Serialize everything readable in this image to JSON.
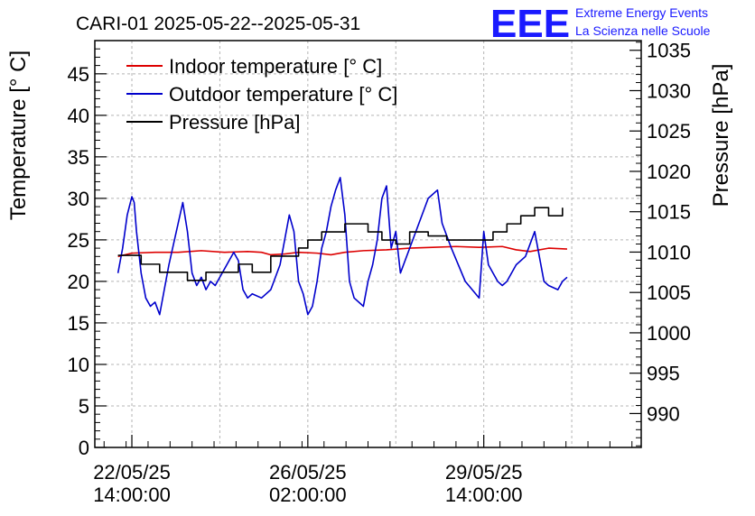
{
  "chart_data": {
    "type": "line",
    "title": "CARI-01 2025-05-22--2025-05-31",
    "logo": {
      "mark": "EEE",
      "line1": "Extreme Energy Events",
      "line2": "La Scienza nelle Scuole",
      "color": "#1a1aff"
    },
    "ylabel": "Temperature [° C]",
    "y2label": "Pressure [hPa]",
    "ylim": [
      0,
      49
    ],
    "y2lim": [
      985.8,
      1036.2
    ],
    "yticks": [
      0,
      5,
      10,
      15,
      20,
      25,
      30,
      35,
      40,
      45
    ],
    "y2ticks": [
      990,
      995,
      1000,
      1005,
      1010,
      1015,
      1020,
      1025,
      1030,
      1035
    ],
    "xlim": [
      -0.8,
      11.0
    ],
    "xticks": [
      {
        "x": 0,
        "line1": "22/05/25",
        "line2": "14:00:00"
      },
      {
        "x": 3.8,
        "line1": "26/05/25",
        "line2": "02:00:00"
      },
      {
        "x": 7.6,
        "line1": "29/05/25",
        "line2": "14:00:00"
      }
    ],
    "grid": true,
    "legend_position": "top-left",
    "series": [
      {
        "name": "Indoor temperature [° C]",
        "axis": "left",
        "color": "#dd0000",
        "x": [
          -0.3,
          0.0,
          0.5,
          1.0,
          1.5,
          2.0,
          2.5,
          2.8,
          3.0,
          3.3,
          3.6,
          4.0,
          4.3,
          4.6,
          5.0,
          5.5,
          6.0,
          6.5,
          7.0,
          7.5,
          8.0,
          8.3,
          8.6,
          9.0,
          9.4
        ],
        "y": [
          23.0,
          23.4,
          23.5,
          23.5,
          23.7,
          23.5,
          23.6,
          23.5,
          23.2,
          23.3,
          23.5,
          23.4,
          23.2,
          23.5,
          23.7,
          23.8,
          24.0,
          24.1,
          24.2,
          24.1,
          24.2,
          23.8,
          23.6,
          24.0,
          23.9
        ]
      },
      {
        "name": "Outdoor temperature [° C]",
        "axis": "left",
        "color": "#0000cc",
        "x": [
          -0.3,
          -0.2,
          -0.1,
          0.0,
          0.05,
          0.1,
          0.2,
          0.3,
          0.4,
          0.5,
          0.6,
          0.7,
          0.8,
          1.0,
          1.1,
          1.2,
          1.3,
          1.4,
          1.5,
          1.6,
          1.7,
          1.8,
          2.0,
          2.2,
          2.3,
          2.4,
          2.5,
          2.6,
          2.8,
          3.0,
          3.2,
          3.4,
          3.5,
          3.6,
          3.7,
          3.8,
          3.9,
          4.0,
          4.1,
          4.2,
          4.3,
          4.4,
          4.5,
          4.6,
          4.7,
          4.8,
          5.0,
          5.1,
          5.2,
          5.3,
          5.4,
          5.5,
          5.6,
          5.7,
          5.8,
          6.0,
          6.2,
          6.4,
          6.6,
          6.7,
          6.9,
          7.2,
          7.5,
          7.6,
          7.7,
          7.9,
          8.0,
          8.1,
          8.3,
          8.5,
          8.7,
          8.9,
          9.0,
          9.2,
          9.3,
          9.4
        ],
        "y": [
          21.0,
          24.0,
          28.0,
          30.2,
          29.5,
          26.0,
          21.0,
          18.0,
          17.0,
          17.5,
          16.0,
          19.0,
          22.0,
          27.0,
          29.5,
          26.0,
          21.0,
          19.5,
          20.5,
          19.0,
          20.0,
          19.5,
          21.5,
          23.5,
          22.5,
          19.0,
          18.0,
          18.5,
          18.0,
          19.0,
          22.0,
          28.0,
          26.0,
          20.0,
          18.5,
          16.0,
          17.0,
          20.0,
          24.0,
          26.0,
          29.0,
          31.0,
          32.5,
          28.0,
          20.0,
          18.0,
          17.0,
          20.0,
          22.0,
          25.0,
          30.0,
          31.5,
          24.0,
          26.0,
          21.0,
          24.0,
          27.0,
          30.0,
          31.0,
          27.0,
          24.0,
          20.0,
          18.0,
          26.0,
          22.0,
          20.0,
          19.5,
          20.0,
          22.0,
          23.0,
          26.0,
          20.0,
          19.5,
          19.0,
          20.0,
          20.5
        ]
      },
      {
        "name": "Pressure [hPa]",
        "axis": "right",
        "color": "#000000",
        "x": [
          -0.3,
          0.2,
          0.6,
          0.9,
          1.2,
          1.6,
          2.0,
          2.3,
          2.6,
          3.0,
          3.3,
          3.6,
          3.8,
          4.1,
          4.3,
          4.6,
          4.9,
          5.1,
          5.4,
          5.7,
          6.0,
          6.4,
          6.8,
          7.2,
          7.6,
          7.8,
          8.1,
          8.4,
          8.7,
          9.0,
          9.3
        ],
        "y": [
          1009.6,
          1008.5,
          1007.5,
          1007.5,
          1006.5,
          1007.5,
          1007.5,
          1008.5,
          1007.5,
          1009.5,
          1009.5,
          1010.5,
          1011.5,
          1012.5,
          1012.5,
          1013.5,
          1013.5,
          1012.5,
          1011.5,
          1011.0,
          1012.5,
          1012.0,
          1011.5,
          1011.5,
          1011.5,
          1012.5,
          1013.5,
          1014.5,
          1015.5,
          1014.5,
          1015.5
        ]
      }
    ]
  }
}
